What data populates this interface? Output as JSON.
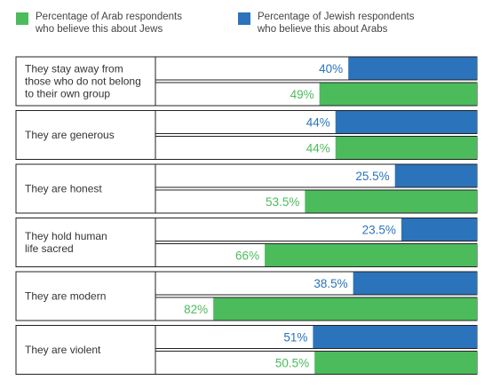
{
  "legend": {
    "arab": {
      "label": "Percentage of Arab respondents who believe this about Jews",
      "color": "#4cbb5c"
    },
    "jewish": {
      "label": "Percentage of Jewish respondents who believe this about Arabs",
      "color": "#2b73ba"
    }
  },
  "chart_data": {
    "type": "bar",
    "orientation": "horizontal",
    "value_suffix": "%",
    "xlim": [
      0,
      100
    ],
    "categories": [
      [
        "They stay away from",
        "those who do not belong",
        "to their own group"
      ],
      [
        "They are generous"
      ],
      [
        "They are honest"
      ],
      [
        "They hold human",
        "life sacred"
      ],
      [
        "They are modern"
      ],
      [
        "They are violent"
      ]
    ],
    "series": [
      {
        "name": "Percentage of Jewish respondents who believe this about Arabs",
        "color": "#2b73ba",
        "values": [
          40,
          44,
          25.5,
          23.5,
          38.5,
          51
        ]
      },
      {
        "name": "Percentage of Arab respondents who believe this about Jews",
        "color": "#4cbb5c",
        "values": [
          49,
          44,
          53.5,
          66,
          82,
          50.5
        ]
      }
    ]
  }
}
